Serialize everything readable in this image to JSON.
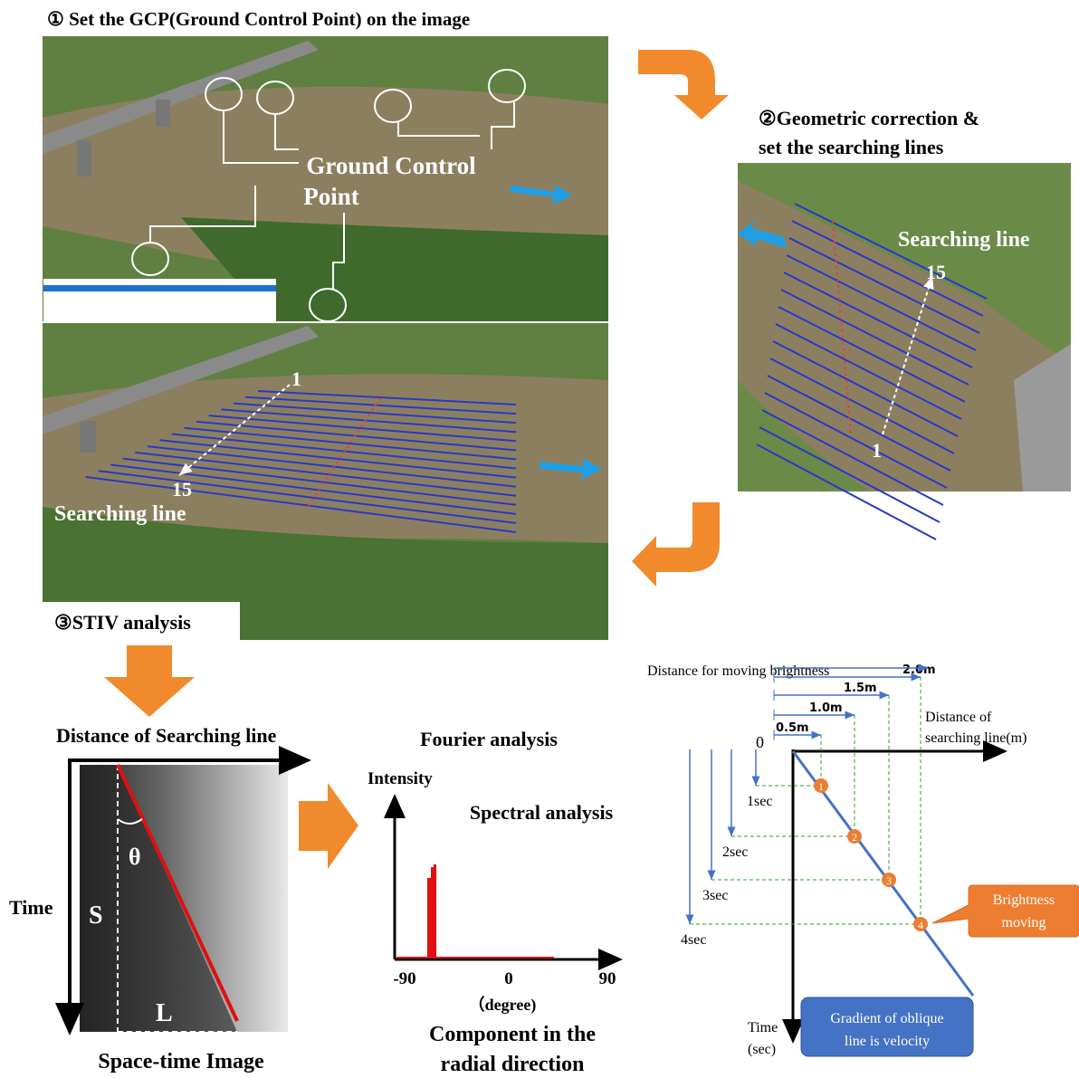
{
  "step1": {
    "title": "① Set the GCP(Ground Control Point) on the image",
    "gcp_label": [
      "Ground Control",
      "Point"
    ]
  },
  "step2": {
    "title": [
      "②Geometric correction &",
      "set the searching lines"
    ],
    "searching_line": "Searching line",
    "top_number": "15",
    "bottom_number": "1"
  },
  "step3": {
    "title": "③STIV analysis",
    "top_number": "1",
    "bottom_number": "15",
    "searching_line": "Searching line"
  },
  "sti": {
    "x_label": "Distance of Searching line",
    "y_label": "Time",
    "angle": "θ",
    "s_label": "S",
    "l_label": "L",
    "caption": "Space-time Image"
  },
  "fourier": {
    "title": "Fourier analysis",
    "y_label": "Intensity",
    "subtitle": "Spectral analysis",
    "ticks": [
      "-90",
      "0",
      "90"
    ],
    "unit": "（degree)",
    "caption": [
      "Component in the",
      "radial direction"
    ]
  },
  "velocity": {
    "top_label": "Distance for moving brightness",
    "distances": [
      "0.5m",
      "1.0m",
      "1.5m",
      "2.0m"
    ],
    "origin": "0",
    "x_label": [
      "Distance of",
      "searching line(m)"
    ],
    "times": [
      "1sec",
      "2sec",
      "3sec",
      "4sec"
    ],
    "points": [
      "1",
      "2",
      "3",
      "4"
    ],
    "callout": [
      "Brightness",
      "moving"
    ],
    "y_label": [
      "Time",
      "(sec)"
    ],
    "note": [
      "Gradient of oblique",
      "line is velocity"
    ]
  }
}
